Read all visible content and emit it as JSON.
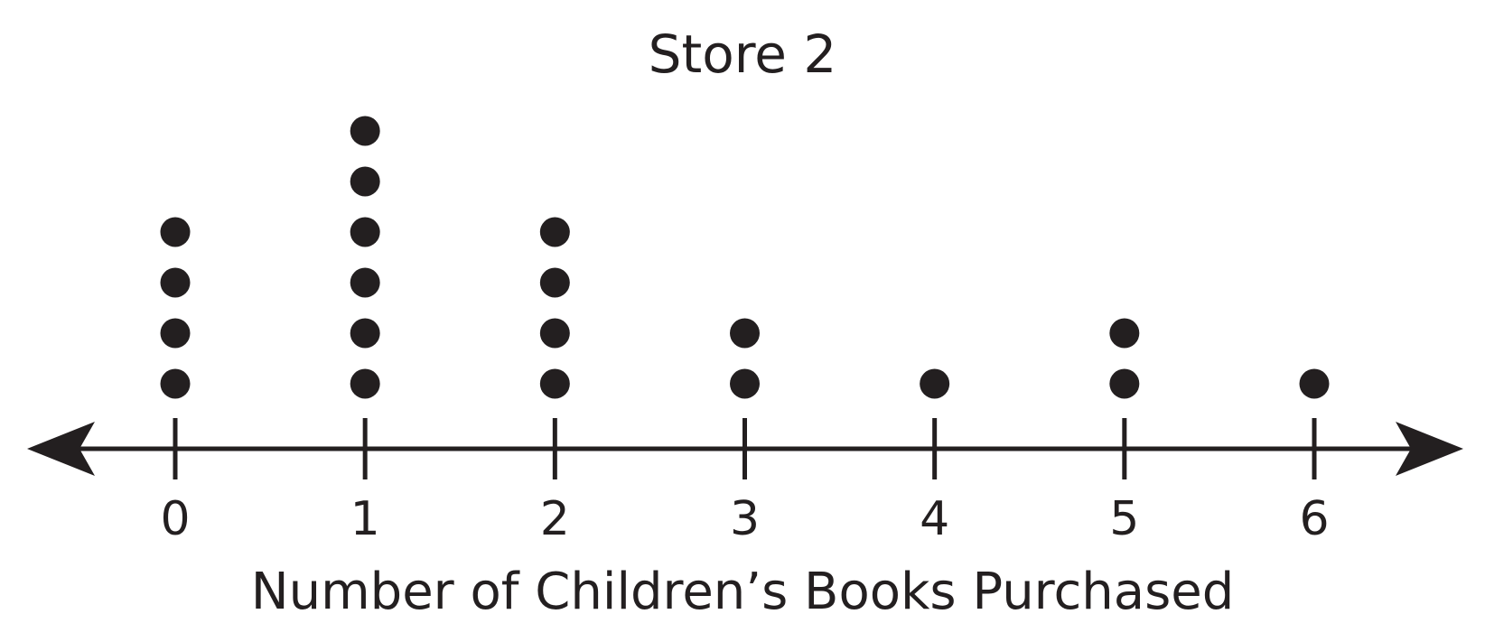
{
  "chart_data": {
    "type": "dot_plot",
    "title": "Store 2",
    "xlabel": "Number of Children’s Books Purchased",
    "ylabel": "",
    "categories": [
      0,
      1,
      2,
      3,
      4,
      5,
      6
    ],
    "tick_labels": [
      "0",
      "1",
      "2",
      "3",
      "4",
      "5",
      "6"
    ],
    "counts": [
      4,
      6,
      4,
      2,
      1,
      2,
      1
    ],
    "xlim": [
      0,
      6
    ],
    "grid": false,
    "legend": "none",
    "colors": {
      "ink": "#231f20",
      "background": "#ffffff"
    }
  }
}
